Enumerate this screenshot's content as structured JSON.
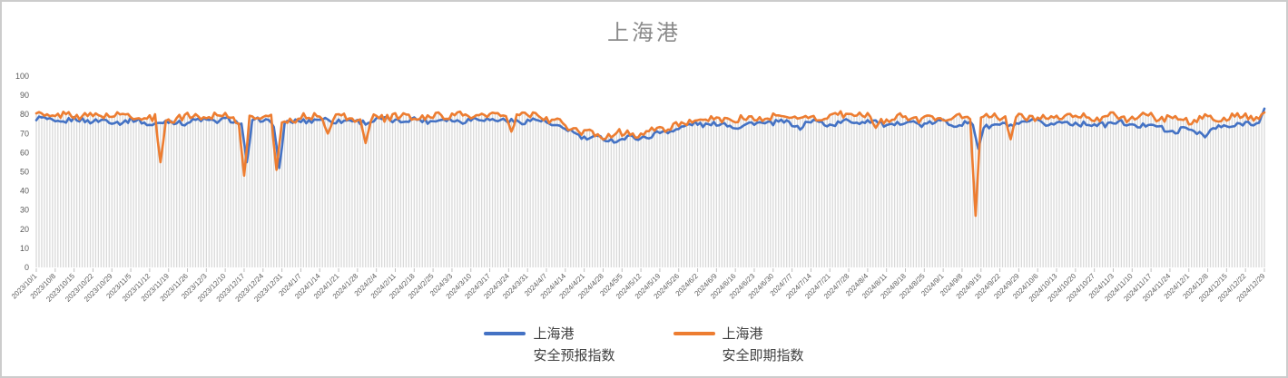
{
  "frame": {
    "background": "#ffffff",
    "border_color": "#cccccc"
  },
  "title": {
    "text": "上海港",
    "color": "#8a8a8a"
  },
  "chart_data": {
    "type": "line",
    "title": "上海港",
    "frequency": "daily",
    "x_first_date": "2023/10/1",
    "x_last_date": "2024/12/29",
    "num_points": 456,
    "ylim": [
      0,
      100
    ],
    "y_ticks": [
      0,
      10,
      20,
      30,
      40,
      50,
      60,
      70,
      80,
      90,
      100
    ],
    "grid": "vertical gray drop lines under the curves, no horizontal gridlines",
    "legend_position": "bottom",
    "x_tick_labels": [
      "2023/10/1",
      "2023/10/8",
      "2023/10/15",
      "2023/10/22",
      "2023/10/29",
      "2023/11/5",
      "2023/11/12",
      "2023/11/19",
      "2023/11/26",
      "2023/12/3",
      "2023/12/10",
      "2023/12/17",
      "2023/12/24",
      "2023/12/31",
      "2024/1/7",
      "2024/1/14",
      "2024/1/21",
      "2024/1/28",
      "2024/2/4",
      "2024/2/11",
      "2024/2/18",
      "2024/2/25",
      "2024/3/3",
      "2024/3/10",
      "2024/3/17",
      "2024/3/24",
      "2024/3/31",
      "2024/4/7",
      "2024/4/14",
      "2024/4/21",
      "2024/4/28",
      "2024/5/5",
      "2024/5/12",
      "2024/5/19",
      "2024/5/26",
      "2024/6/2",
      "2024/6/9",
      "2024/6/16",
      "2024/6/23",
      "2024/6/30",
      "2024/7/7",
      "2024/7/14",
      "2024/7/21",
      "2024/7/28",
      "2024/8/4",
      "2024/8/11",
      "2024/8/18",
      "2024/8/25",
      "2024/9/1",
      "2024/9/8",
      "2024/9/15",
      "2024/9/22",
      "2024/9/29",
      "2024/10/6",
      "2024/10/13",
      "2024/10/20",
      "2024/10/27",
      "2024/11/3",
      "2024/11/10",
      "2024/11/17",
      "2024/11/24",
      "2024/12/1",
      "2024/12/8",
      "2024/12/15",
      "2024/12/22",
      "2024/12/29"
    ],
    "series": [
      {
        "name": "上海港 安全预报指数",
        "color": "#4472C4",
        "weekly_values": [
          78,
          76,
          77,
          77,
          76,
          77,
          75,
          76,
          76,
          77,
          77,
          75,
          77,
          74,
          77,
          77,
          77,
          76,
          77,
          77,
          77,
          77,
          77,
          77,
          78,
          76,
          77,
          76,
          72,
          68,
          67,
          67,
          68,
          70,
          73,
          75,
          75,
          74,
          75,
          76,
          75,
          76,
          75,
          76,
          77,
          74,
          76,
          75,
          76,
          75,
          74,
          74,
          75,
          76,
          75,
          76,
          74,
          76,
          74,
          75,
          71,
          72,
          71,
          74,
          75,
          76
        ]
      },
      {
        "name": "上海港 安全即期指数",
        "color": "#ED7D31",
        "weekly_values": [
          80,
          79,
          80,
          79,
          80,
          79,
          78,
          77,
          79,
          79,
          80,
          76,
          80,
          76,
          79,
          78,
          79,
          77,
          78,
          79,
          78,
          79,
          80,
          79,
          80,
          78,
          80,
          78,
          74,
          70,
          69,
          70,
          70,
          72,
          75,
          76,
          78,
          77,
          78,
          78,
          79,
          78,
          79,
          80,
          79,
          77,
          79,
          77,
          79,
          78,
          78,
          79,
          78,
          79,
          78,
          80,
          78,
          79,
          78,
          79,
          78,
          77,
          78,
          78,
          79,
          79
        ]
      }
    ],
    "dip_events": [
      {
        "date": "2023/11/16",
        "series": 1,
        "value": 55
      },
      {
        "date": "2023/12/17",
        "series": 1,
        "value": 48
      },
      {
        "date": "2023/12/18",
        "series": 0,
        "value": 55
      },
      {
        "date": "2023/12/29",
        "series": 1,
        "value": 51
      },
      {
        "date": "2023/12/30",
        "series": 0,
        "value": 52
      },
      {
        "date": "2024/1/17",
        "series": 1,
        "value": 70
      },
      {
        "date": "2024/1/31",
        "series": 1,
        "value": 65
      },
      {
        "date": "2024/3/25",
        "series": 1,
        "value": 71
      },
      {
        "date": "2024/7/10",
        "series": 0,
        "value": 72
      },
      {
        "date": "2024/8/7",
        "series": 1,
        "value": 73
      },
      {
        "date": "2024/9/13",
        "series": 1,
        "value": 27
      },
      {
        "date": "2024/9/14",
        "series": 0,
        "value": 62
      },
      {
        "date": "2024/9/26",
        "series": 1,
        "value": 67
      },
      {
        "date": "2024/12/7",
        "series": 0,
        "value": 68
      },
      {
        "date": "2024/12/29",
        "series": 0,
        "value": 83
      },
      {
        "date": "2024/12/29",
        "series": 1,
        "value": 81
      }
    ],
    "noise_amplitude": [
      1.3,
      1.8
    ]
  },
  "colors": {
    "dropline": "#d9d9d9",
    "tick": "#bfbfbf",
    "axis_text": "#595959"
  },
  "legend": {
    "items": [
      {
        "line1": "上海港",
        "line2": "安全预报指数",
        "color": "#4472C4"
      },
      {
        "line1": "上海港",
        "line2": "安全即期指数",
        "color": "#ED7D31"
      }
    ]
  }
}
